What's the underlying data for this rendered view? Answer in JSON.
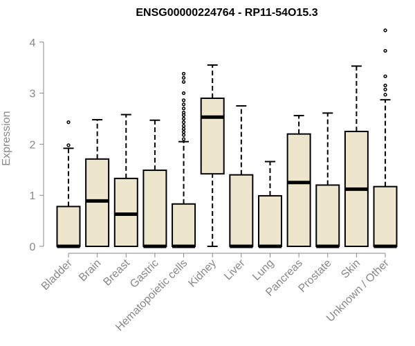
{
  "chart_data": {
    "type": "boxplot",
    "title": "ENSG00000224764 - RP11-54O15.3",
    "xlabel": "",
    "ylabel": "Expression",
    "ylim": [
      0,
      4.3
    ],
    "yticks": [
      0,
      1,
      2,
      3,
      4
    ],
    "grid": false,
    "colors": {
      "box_fill": "#ede6cc",
      "stroke": "#000000",
      "axis_text": "#888888"
    },
    "categories": [
      "Bladder",
      "Brain",
      "Breast",
      "Gastric",
      "Hematopoietic cells",
      "Kidney",
      "Liver",
      "Lung",
      "Pancreas",
      "Prostate",
      "Skin",
      "Unknown / Other"
    ],
    "boxes": [
      {
        "category": "Bladder",
        "min": 0,
        "q1": 0,
        "median": 0,
        "q3": 0.78,
        "max": 1.92,
        "outliers": [
          1.98,
          2.43
        ]
      },
      {
        "category": "Brain",
        "min": 0,
        "q1": 0,
        "median": 0.89,
        "q3": 1.71,
        "max": 2.48,
        "outliers": []
      },
      {
        "category": "Breast",
        "min": 0,
        "q1": 0,
        "median": 0.63,
        "q3": 1.33,
        "max": 2.58,
        "outliers": []
      },
      {
        "category": "Gastric",
        "min": 0,
        "q1": 0,
        "median": 0,
        "q3": 1.49,
        "max": 2.47,
        "outliers": []
      },
      {
        "category": "Hematopoietic cells",
        "min": 0,
        "q1": 0,
        "median": 0,
        "q3": 0.83,
        "max": 2.05,
        "outliers": [
          2.1,
          2.18,
          2.24,
          2.3,
          2.36,
          2.43,
          2.5,
          2.57,
          2.62,
          2.7,
          2.78,
          2.86,
          3.0,
          3.22,
          3.3,
          3.38
        ]
      },
      {
        "category": "Kidney",
        "min": 0,
        "q1": 1.42,
        "median": 2.53,
        "q3": 2.9,
        "max": 3.55,
        "outliers": []
      },
      {
        "category": "Liver",
        "min": 0,
        "q1": 0,
        "median": 0,
        "q3": 1.4,
        "max": 2.75,
        "outliers": []
      },
      {
        "category": "Lung",
        "min": 0,
        "q1": 0,
        "median": 0,
        "q3": 0.99,
        "max": 1.66,
        "outliers": []
      },
      {
        "category": "Pancreas",
        "min": 0,
        "q1": 0,
        "median": 1.25,
        "q3": 2.2,
        "max": 2.56,
        "outliers": []
      },
      {
        "category": "Prostate",
        "min": 0,
        "q1": 0,
        "median": 0,
        "q3": 1.2,
        "max": 2.61,
        "outliers": []
      },
      {
        "category": "Skin",
        "min": 0,
        "q1": 0,
        "median": 1.12,
        "q3": 2.25,
        "max": 3.53,
        "outliers": []
      },
      {
        "category": "Unknown / Other",
        "min": 0,
        "q1": 0,
        "median": 0,
        "q3": 1.17,
        "max": 2.87,
        "outliers": [
          2.97,
          3.07,
          3.15,
          3.33,
          3.83,
          4.23
        ]
      }
    ]
  }
}
